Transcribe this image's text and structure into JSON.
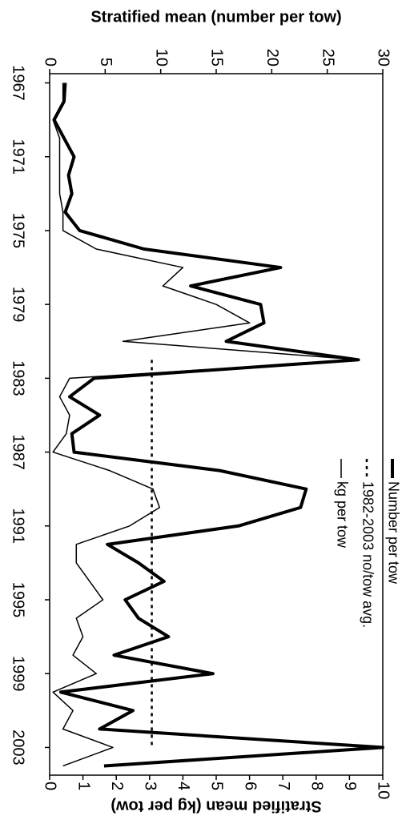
{
  "chart_data": {
    "type": "line",
    "ylabel": "Stratified mean (number per tow)",
    "y2label": "Stratified mean (kg per tow)",
    "x": [
      1967,
      1968,
      1969,
      1970,
      1971,
      1972,
      1973,
      1974,
      1975,
      1976,
      1977,
      1978,
      1979,
      1980,
      1981,
      1982,
      1983,
      1984,
      1985,
      1986,
      1987,
      1988,
      1989,
      1990,
      1991,
      1992,
      1993,
      1994,
      1995,
      1996,
      1997,
      1998,
      1999,
      2000,
      2001,
      2002,
      2003,
      2004
    ],
    "xlim": [
      1966.5,
      2004.5
    ],
    "xticks": [
      1967,
      1971,
      1975,
      1979,
      1983,
      1987,
      1991,
      1995,
      1999,
      2003
    ],
    "ylim": [
      0,
      30
    ],
    "yticks": [
      0,
      5,
      10,
      15,
      20,
      25,
      30
    ],
    "y2lim": [
      0,
      10
    ],
    "y2ticks": [
      0,
      1,
      2,
      3,
      4,
      5,
      6,
      7,
      8,
      9,
      10
    ],
    "legend": "upper right",
    "series": [
      {
        "name": "Number per tow",
        "color": "#000000",
        "line_width": 4,
        "dashed": false,
        "values": [
          1.4,
          1.3,
          0.4,
          1.3,
          2.2,
          1.7,
          2.0,
          1.4,
          2.7,
          8.5,
          20.8,
          12.7,
          19.0,
          19.3,
          15.9,
          27.8,
          4.0,
          1.8,
          4.5,
          2.0,
          2.2,
          15.3,
          23.1,
          22.6,
          17.0,
          5.2,
          8.0,
          10.3,
          6.8,
          8.0,
          10.7,
          5.8,
          14.7,
          1.0,
          7.5,
          4.5,
          30,
          4.9
        ]
      },
      {
        "name": "1982-2003 no/tow avg.",
        "color": "#000000",
        "line_width": 2.5,
        "dashed": true,
        "values": [
          null,
          null,
          null,
          null,
          null,
          null,
          null,
          null,
          null,
          null,
          null,
          null,
          null,
          null,
          null,
          9.2,
          9.2,
          9.2,
          9.2,
          9.2,
          9.2,
          9.2,
          9.2,
          9.2,
          9.2,
          9.2,
          9.2,
          9.2,
          9.2,
          9.2,
          9.2,
          9.2,
          9.2,
          9.2,
          9.2,
          9.2,
          9.2,
          null
        ]
      },
      {
        "name": "kg per tow",
        "color": "#000000",
        "line_width": 1.5,
        "dashed": false,
        "axis": "y2",
        "values": [
          0.4,
          0.4,
          0.1,
          0.3,
          0.3,
          0.3,
          0.3,
          0.4,
          0.4,
          1.4,
          4.0,
          3.4,
          5.0,
          6.0,
          2.2,
          9.3,
          0.6,
          0.3,
          0.6,
          0.5,
          0.1,
          1.8,
          3.1,
          3.3,
          2.4,
          0.8,
          0.8,
          1.2,
          1.6,
          0.8,
          1.0,
          0.7,
          1.4,
          0.1,
          0.7,
          0.4,
          1.9,
          0.4
        ]
      }
    ]
  }
}
